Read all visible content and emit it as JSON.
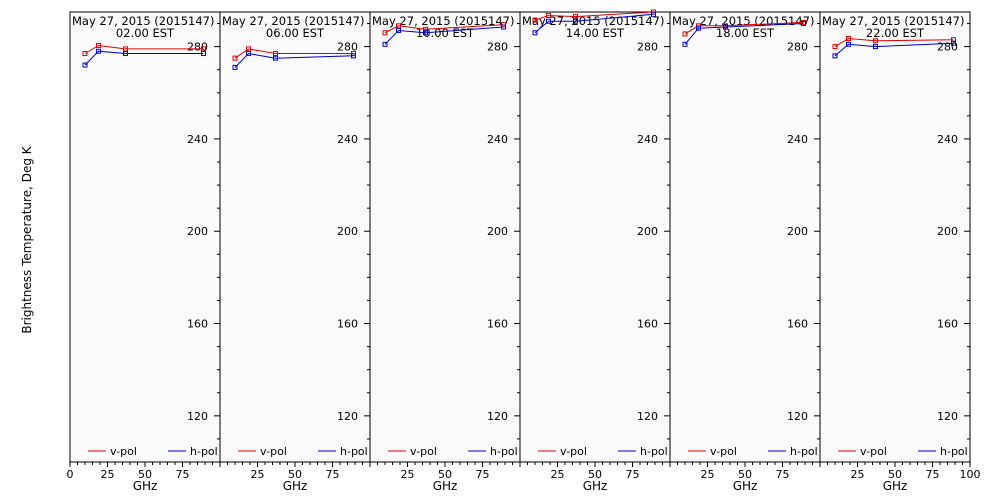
{
  "chart_data": {
    "type": "line",
    "ylabel": "Brightness Temperature, Deg K",
    "xlabel": "GHz",
    "xlim": [
      0,
      100
    ],
    "ylim": [
      100,
      295
    ],
    "yticks": [
      120,
      160,
      200,
      240,
      280
    ],
    "xticks": [
      0,
      25,
      50,
      75,
      100
    ],
    "legend_placement": "bottom",
    "series_colors": {
      "v-pol": "#e00000",
      "h-pol": "#0000cc"
    },
    "legend": [
      "v-pol",
      "h-pol"
    ],
    "panels": [
      {
        "date_label": "May 27, 2015 (2015147)",
        "time_label": "02.00 EST",
        "x": [
          10,
          19,
          37,
          89
        ],
        "series": [
          {
            "name": "v-pol",
            "values": [
              277,
              280.5,
              279,
              279
            ]
          },
          {
            "name": "h-pol",
            "values": [
              272,
              278,
              277,
              277
            ]
          }
        ]
      },
      {
        "date_label": "May 27, 2015 (2015147)",
        "time_label": "06.00 EST",
        "x": [
          10,
          19,
          37,
          89
        ],
        "series": [
          {
            "name": "v-pol",
            "values": [
              275,
              279,
              277,
              277
            ]
          },
          {
            "name": "h-pol",
            "values": [
              271,
              277,
              275,
              276
            ]
          }
        ]
      },
      {
        "date_label": "May 27, 2015 (2015147)",
        "time_label": "10.00 EST",
        "x": [
          10,
          19,
          37,
          89
        ],
        "series": [
          {
            "name": "v-pol",
            "values": [
              286,
              289,
              287.5,
              289.5
            ]
          },
          {
            "name": "h-pol",
            "values": [
              281,
              287,
              286,
              288.5
            ]
          }
        ]
      },
      {
        "date_label": "May 27, 2015 (2015147)",
        "time_label": "14.00 EST",
        "x": [
          10,
          19,
          37,
          89
        ],
        "series": [
          {
            "name": "v-pol",
            "values": [
              291.5,
              293.5,
              293,
              295
            ]
          },
          {
            "name": "h-pol",
            "values": [
              286,
              291,
              291,
              294
            ]
          }
        ]
      },
      {
        "date_label": "May 27, 2015 (2015147)",
        "time_label": "18.00 EST",
        "x": [
          10,
          19,
          37,
          89
        ],
        "series": [
          {
            "name": "v-pol",
            "values": [
              285.5,
              289,
              289,
              290.5
            ]
          },
          {
            "name": "h-pol",
            "values": [
              281,
              288,
              288.5,
              290
            ]
          }
        ]
      },
      {
        "date_label": "May 27, 2015 (2015147)",
        "time_label": "22.00 EST",
        "x": [
          10,
          19,
          37,
          89
        ],
        "series": [
          {
            "name": "v-pol",
            "values": [
              280,
              283.5,
              282.5,
              283
            ]
          },
          {
            "name": "h-pol",
            "values": [
              276,
              281,
              280,
              281.5
            ]
          }
        ]
      }
    ]
  }
}
